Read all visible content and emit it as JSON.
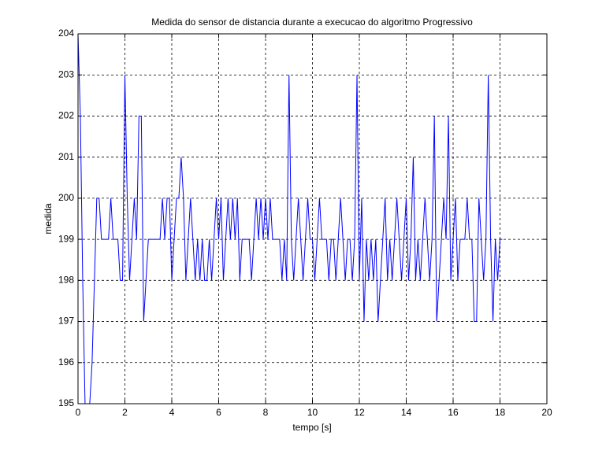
{
  "chart_data": {
    "type": "line",
    "title": "Medida do sensor de distancia durante a execucao do algoritmo Progressivo",
    "xlabel": "tempo [s]",
    "ylabel": "medida",
    "x": [
      0,
      0.1,
      0.2,
      0.3,
      0.4,
      0.5,
      0.6,
      0.7,
      0.8,
      0.9,
      1,
      1.1,
      1.2,
      1.3,
      1.4,
      1.5,
      1.6,
      1.7,
      1.8,
      1.9,
      2,
      2.1,
      2.2,
      2.3,
      2.4,
      2.5,
      2.6,
      2.7,
      2.8,
      2.9,
      3,
      3.1,
      3.2,
      3.3,
      3.4,
      3.5,
      3.6,
      3.7,
      3.8,
      3.9,
      4,
      4.1,
      4.2,
      4.3,
      4.4,
      4.5,
      4.6,
      4.7,
      4.8,
      4.9,
      5,
      5.1,
      5.2,
      5.3,
      5.4,
      5.5,
      5.6,
      5.7,
      5.8,
      5.9,
      6,
      6.1,
      6.2,
      6.3,
      6.4,
      6.5,
      6.6,
      6.7,
      6.8,
      6.9,
      7,
      7.1,
      7.2,
      7.3,
      7.4,
      7.5,
      7.6,
      7.7,
      7.8,
      7.9,
      8,
      8.1,
      8.2,
      8.3,
      8.4,
      8.5,
      8.6,
      8.7,
      8.8,
      8.9,
      9,
      9.1,
      9.2,
      9.3,
      9.4,
      9.5,
      9.6,
      9.7,
      9.8,
      9.9,
      10,
      10.1,
      10.2,
      10.3,
      10.4,
      10.5,
      10.6,
      10.7,
      10.8,
      10.9,
      11,
      11.1,
      11.2,
      11.3,
      11.4,
      11.5,
      11.6,
      11.7,
      11.8,
      11.9,
      12,
      12.1,
      12.2,
      12.3,
      12.4,
      12.5,
      12.6,
      12.7,
      12.8,
      12.9,
      13,
      13.1,
      13.2,
      13.3,
      13.4,
      13.5,
      13.6,
      13.7,
      13.8,
      13.9,
      14,
      14.1,
      14.2,
      14.3,
      14.4,
      14.5,
      14.6,
      14.7,
      14.8,
      14.9,
      15,
      15.1,
      15.2,
      15.3,
      15.4,
      15.5,
      15.6,
      15.7,
      15.8,
      15.9,
      16,
      16.1,
      16.2,
      16.3,
      16.4,
      16.5,
      16.6,
      16.7,
      16.8,
      16.9,
      17,
      17.1,
      17.2,
      17.3,
      17.4,
      17.5,
      17.6,
      17.7,
      17.8,
      17.9,
      18,
      18.1
    ],
    "series": [
      {
        "color": "#0000ff",
        "values": [
          204,
          202,
          198,
          195,
          195,
          195,
          196,
          198,
          200,
          200,
          199,
          199,
          199,
          199,
          200,
          199,
          199,
          199,
          198,
          198,
          203,
          200,
          198,
          199,
          200,
          199,
          202,
          202,
          197,
          198,
          199,
          199,
          199,
          199,
          199,
          199,
          200,
          199,
          200,
          200,
          198,
          199,
          200,
          200,
          201,
          200,
          198,
          199,
          200,
          199,
          198,
          199,
          198,
          199,
          198,
          198,
          199,
          198,
          199,
          200,
          199,
          200,
          198,
          199,
          200,
          199,
          200,
          199,
          200,
          198,
          199,
          199,
          199,
          199,
          198,
          199,
          200,
          199,
          200,
          199,
          200,
          199,
          200,
          199,
          199,
          199,
          199,
          198,
          199,
          198,
          203,
          199,
          198,
          199,
          200,
          199,
          198,
          199,
          200,
          199,
          199,
          198,
          199,
          200,
          199,
          199,
          199,
          198,
          199,
          199,
          198,
          199,
          200,
          199,
          198,
          199,
          199,
          198,
          199,
          203,
          198,
          200,
          197,
          199,
          198,
          199,
          198,
          199,
          197,
          198,
          199,
          200,
          198,
          199,
          198,
          199,
          200,
          199,
          198,
          199,
          200,
          198,
          199,
          201,
          198,
          199,
          198,
          199,
          200,
          199,
          198,
          199,
          202,
          197,
          198,
          199,
          200,
          199,
          202,
          198,
          199,
          200,
          198,
          199,
          199,
          199,
          200,
          199,
          199,
          197,
          197,
          200,
          199,
          198,
          199,
          203,
          199,
          197,
          199,
          198,
          199,
          199
        ]
      }
    ],
    "xlim": [
      0,
      20
    ],
    "xticks": [
      0,
      2,
      4,
      6,
      8,
      10,
      12,
      14,
      16,
      18,
      20
    ],
    "ylim": [
      195,
      204
    ],
    "yticks": [
      195,
      196,
      197,
      198,
      199,
      200,
      201,
      202,
      203,
      204
    ],
    "grid": true
  }
}
